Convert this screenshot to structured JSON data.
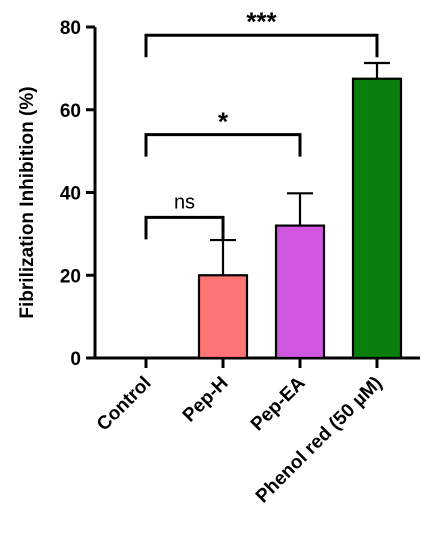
{
  "chart_data": {
    "type": "bar",
    "ylabel": "Fibrilization Inhibition (%)",
    "ylim": [
      0,
      80
    ],
    "yticks": [
      "0",
      "20",
      "40",
      "60",
      "80"
    ],
    "categories": [
      "Control",
      "Pep-H",
      "Pep-EA",
      "Phenol red (50 µM)"
    ],
    "values": [
      0,
      20,
      32,
      67.5
    ],
    "errors": [
      0,
      8.5,
      7.8,
      3.8
    ],
    "colors": [
      "#ffffff",
      "#ff7474",
      "#d058e0",
      "#0a7d0a"
    ],
    "grid": false,
    "significance": [
      {
        "from": "Control",
        "to": "Pep-H",
        "label": "ns",
        "y": 34
      },
      {
        "from": "Control",
        "to": "Pep-EA",
        "label": "*",
        "y": 54
      },
      {
        "from": "Control",
        "to": "Phenol red (50 µM)",
        "label": "***",
        "y": 78
      }
    ]
  }
}
